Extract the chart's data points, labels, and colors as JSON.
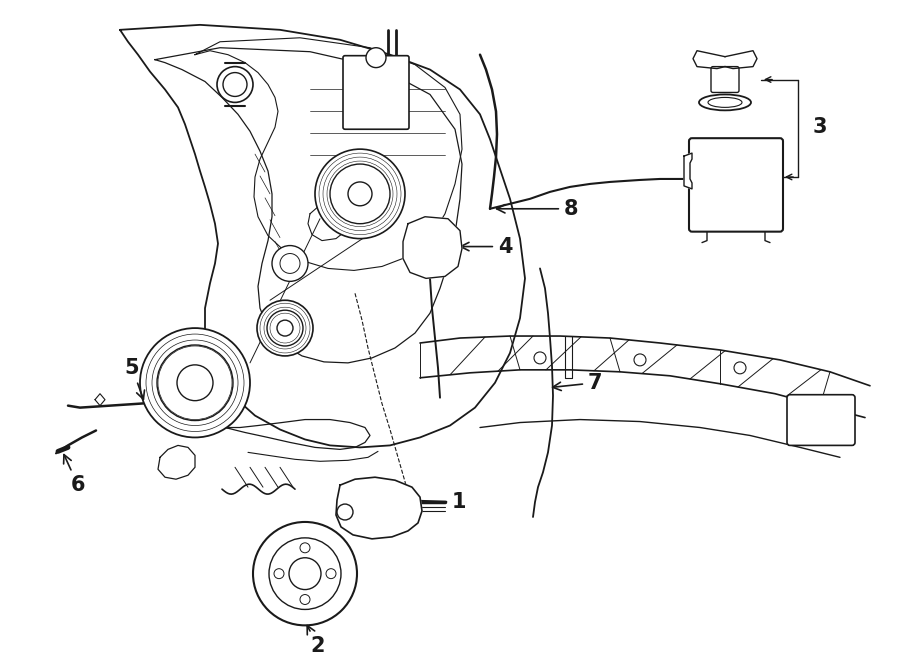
{
  "bg_color": "#ffffff",
  "line_color": "#1a1a1a",
  "figsize": [
    9.0,
    6.61
  ],
  "dpi": 100,
  "lw": 1.0
}
